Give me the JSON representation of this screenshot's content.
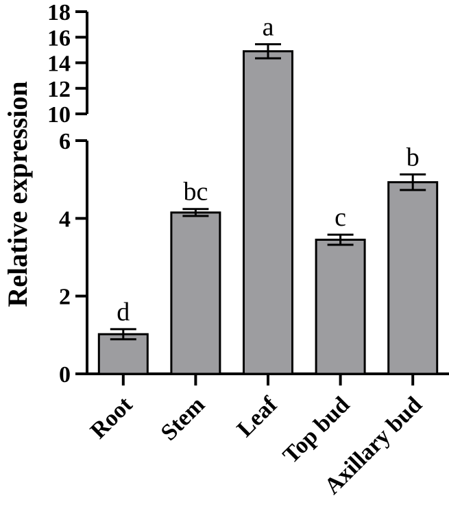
{
  "chart_data": {
    "type": "bar",
    "title": "",
    "xlabel": "",
    "ylabel": "Relative expression",
    "categories": [
      "Root",
      "Stem",
      "Leaf",
      "Top bud",
      "Axillary bud"
    ],
    "values": [
      1.02,
      4.15,
      14.9,
      3.45,
      4.93
    ],
    "errors": [
      0.13,
      0.09,
      0.55,
      0.13,
      0.2
    ],
    "significance_letters": [
      "d",
      "bc",
      "a",
      "c",
      "b"
    ],
    "y_axis_broken": true,
    "y_segments": [
      {
        "range": [
          0,
          6
        ],
        "ticks": [
          0,
          2,
          4,
          6
        ]
      },
      {
        "range": [
          10,
          18
        ],
        "ticks": [
          10,
          12,
          14,
          16,
          18
        ]
      }
    ],
    "bar_color": "#9d9da0",
    "grid": false
  }
}
